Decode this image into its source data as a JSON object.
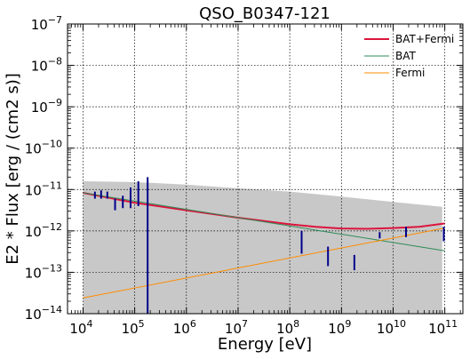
{
  "chart_data": {
    "type": "line",
    "title": "QSO_B0347-121",
    "xlabel": "Energy [eV]",
    "ylabel": "E2 * Flux [erg / (cm2 s)]",
    "xscale": "log",
    "yscale": "log",
    "xlim_exp": [
      3.7,
      11.35
    ],
    "ylim_exp": [
      -14,
      -7
    ],
    "x_ticks": [
      {
        "base": "10",
        "exp": "4"
      },
      {
        "base": "10",
        "exp": "5"
      },
      {
        "base": "10",
        "exp": "6"
      },
      {
        "base": "10",
        "exp": "7"
      },
      {
        "base": "10",
        "exp": "8"
      },
      {
        "base": "10",
        "exp": "9"
      },
      {
        "base": "10",
        "exp": "10"
      },
      {
        "base": "10",
        "exp": "11"
      }
    ],
    "y_ticks": [
      {
        "base": "10",
        "exp": "−14"
      },
      {
        "base": "10",
        "exp": "−13"
      },
      {
        "base": "10",
        "exp": "−12"
      },
      {
        "base": "10",
        "exp": "−11"
      },
      {
        "base": "10",
        "exp": "−10"
      },
      {
        "base": "10",
        "exp": "−9"
      },
      {
        "base": "10",
        "exp": "−8"
      },
      {
        "base": "10",
        "exp": "−7"
      }
    ],
    "grid": true,
    "legend_position": "top-right",
    "series": [
      {
        "name": "BAT+Fermi",
        "color": "#dc143c",
        "log_x": [
          4,
          5,
          6,
          7,
          8,
          8.5,
          9,
          9.5,
          10,
          10.5,
          11
        ],
        "log_y": [
          -11.08,
          -11.32,
          -11.5,
          -11.68,
          -11.84,
          -11.9,
          -11.94,
          -11.95,
          -11.93,
          -11.9,
          -11.82
        ]
      },
      {
        "name": "BAT",
        "color": "#2e8b57",
        "log_x": [
          4,
          11
        ],
        "log_y": [
          -11.08,
          -12.48
        ]
      },
      {
        "name": "Fermi",
        "color": "#ff8c00",
        "log_x": [
          4,
          11
        ],
        "log_y": [
          -13.62,
          -11.93
        ]
      }
    ],
    "band": {
      "color": "#c8c8c8",
      "log_x": [
        4,
        5,
        6,
        7,
        8,
        9,
        10,
        10.95
      ],
      "log_upper": [
        -10.8,
        -10.82,
        -10.88,
        -10.97,
        -11.05,
        -11.17,
        -11.3,
        -11.42
      ],
      "log_lower": [
        -14,
        -14,
        -14,
        -14,
        -14,
        -14,
        -14,
        -14
      ]
    },
    "error_bars": {
      "color": "#00008b",
      "points": [
        {
          "log_x": 4.23,
          "log_lo": -11.22,
          "log_hi": -11.05
        },
        {
          "log_x": 4.35,
          "log_lo": -11.22,
          "log_hi": -11.02
        },
        {
          "log_x": 4.47,
          "log_lo": -11.22,
          "log_hi": -11.05
        },
        {
          "log_x": 4.62,
          "log_lo": -11.5,
          "log_hi": -11.22
        },
        {
          "log_x": 4.77,
          "log_lo": -11.45,
          "log_hi": -11.15
        },
        {
          "log_x": 4.92,
          "log_lo": -11.45,
          "log_hi": -10.95
        },
        {
          "log_x": 5.07,
          "log_lo": -11.4,
          "log_hi": -10.8
        },
        {
          "log_x": 5.25,
          "log_lo": -14,
          "log_hi": -10.7
        },
        {
          "log_x": 8.23,
          "log_lo": -12.55,
          "log_hi": -12.0
        },
        {
          "log_x": 8.74,
          "log_lo": -12.85,
          "log_hi": -12.38
        },
        {
          "log_x": 9.25,
          "log_lo": -12.95,
          "log_hi": -12.58
        },
        {
          "log_x": 9.74,
          "log_lo": -12.18,
          "log_hi": -12.03
        },
        {
          "log_x": 10.25,
          "log_lo": -12.15,
          "log_hi": -11.9
        },
        {
          "log_x": 10.98,
          "log_lo": -12.25,
          "log_hi": -11.9
        }
      ]
    }
  }
}
